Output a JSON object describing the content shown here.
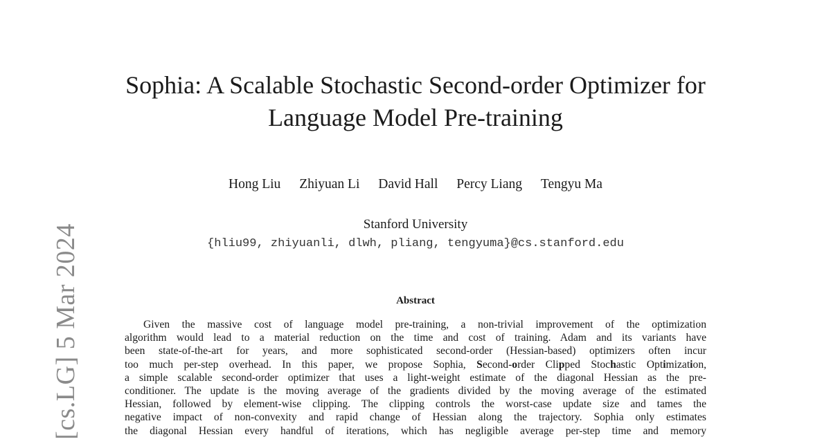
{
  "side_label": "[cs.LG]  5 Mar 2024",
  "title_lines": [
    "Sophia: A Scalable Stochastic Second-order Optimizer for",
    "Language Model Pre-training"
  ],
  "authors": [
    "Hong Liu",
    "Zhiyuan Li",
    "David Hall",
    "Percy Liang",
    "Tengyu Ma"
  ],
  "affiliation": "Stanford University",
  "email": "{hliu99, zhiyuanli, dlwh, pliang, tengyuma}@cs.stanford.edu",
  "abstract": {
    "heading": "Abstract",
    "lines": [
      "Given the massive cost of language model pre-training, a non-trivial improvement of the optimization",
      "algorithm would lead to a material reduction on the time and cost of training. Adam and its variants have",
      "been state-of-the-art for years, and more sophisticated second-order (Hessian-based) optimizers often incur",
      "too much per-step overhead. In this paper, we propose Sophia, Second-order Clipped Stochastic Optimization,",
      "a simple scalable second-order optimizer that uses a light-weight estimate of the diagonal Hessian as the pre-",
      "conditioner. The update is the moving average of the gradients divided by the moving average of the estimated",
      "Hessian, followed by element-wise clipping. The clipping controls the worst-case update size and tames the",
      "negative impact of non-convexity and rapid change of Hessian along the trajectory. Sophia only estimates",
      "the diagonal Hessian every handful of iterations, which has negligible average per-step time and memory"
    ]
  }
}
